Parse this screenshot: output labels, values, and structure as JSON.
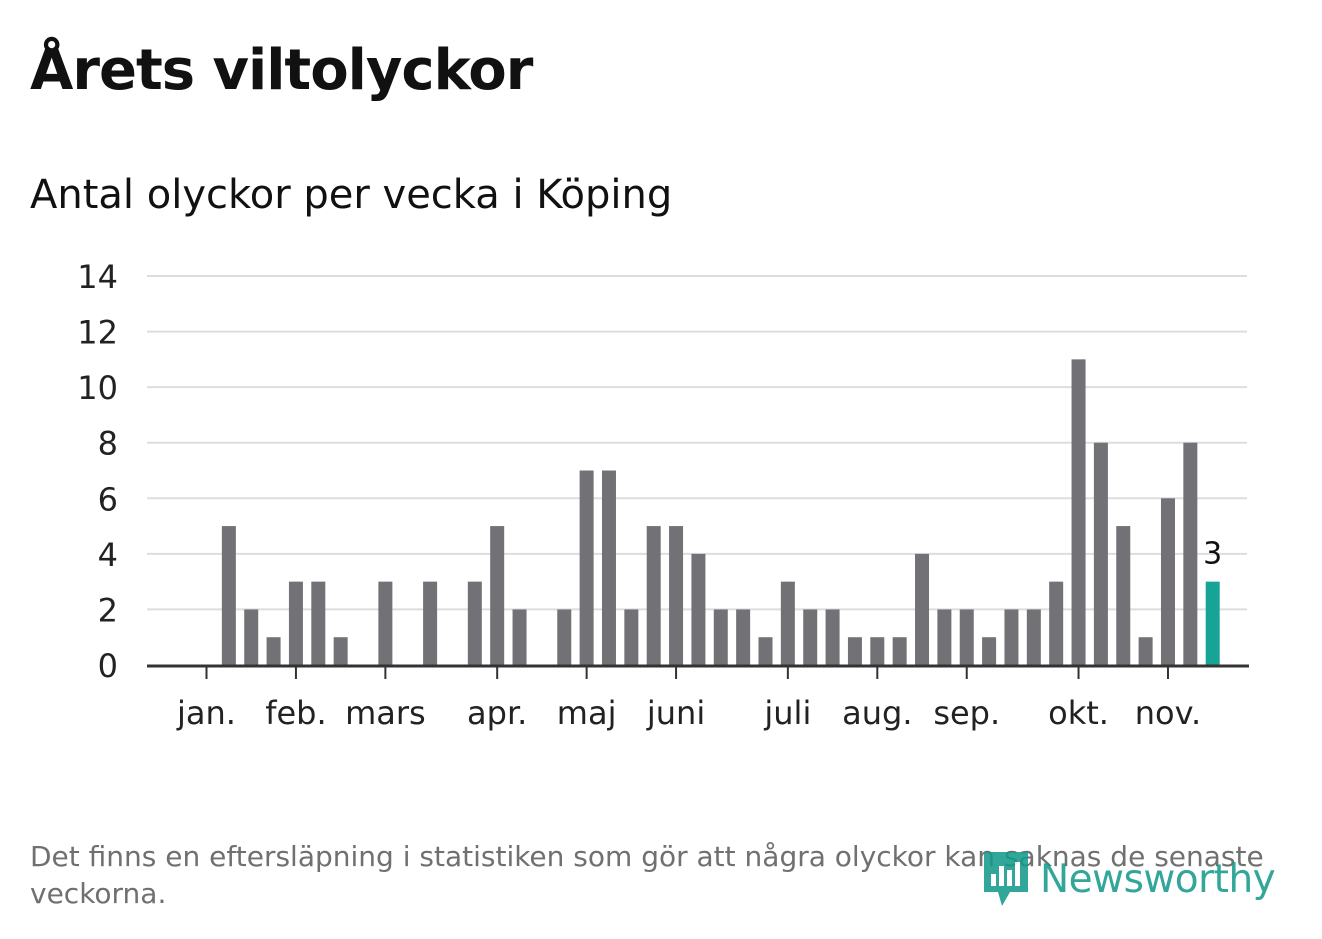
{
  "title": "Årets viltolyckor",
  "subtitle": "Antal olyckor per vecka i Köping",
  "footnote": "Det finns en eftersläpning i statistiken som gör att några olyckor kan saknas de senaste veckorna.",
  "logo": {
    "text": "Newsworthy",
    "icon": "newsworthy-chart-bubble-icon"
  },
  "colors": {
    "bar": "#727176",
    "highlight": "#17a396",
    "grid": "#dddddd",
    "axis": "#333333"
  },
  "chart_data": {
    "type": "bar",
    "title": "Antal olyckor per vecka i Köping",
    "xlabel": "",
    "ylabel": "",
    "ylim": [
      0,
      14
    ],
    "yticks": [
      0,
      2,
      4,
      6,
      8,
      10,
      12,
      14
    ],
    "grid": true,
    "weeks": [
      1,
      2,
      3,
      4,
      5,
      6,
      7,
      8,
      9,
      10,
      11,
      12,
      13,
      14,
      15,
      16,
      17,
      18,
      19,
      20,
      21,
      22,
      23,
      24,
      25,
      26,
      27,
      28,
      29,
      30,
      31,
      32,
      33,
      34,
      35,
      36,
      37,
      38,
      39,
      40,
      41,
      42,
      43,
      44,
      45,
      46,
      47
    ],
    "values": [
      0,
      5,
      2,
      1,
      3,
      3,
      1,
      0,
      3,
      0,
      3,
      0,
      3,
      5,
      2,
      0,
      2,
      7,
      7,
      2,
      5,
      5,
      4,
      2,
      2,
      1,
      3,
      2,
      2,
      1,
      1,
      1,
      4,
      2,
      2,
      1,
      2,
      2,
      3,
      11,
      8,
      5,
      1,
      6,
      8,
      3,
      0
    ],
    "highlight_index": 45,
    "highlight_label": "3",
    "month_ticks": [
      {
        "label": "jan.",
        "week": 1.5
      },
      {
        "label": "feb.",
        "week": 5.5
      },
      {
        "label": "mars",
        "week": 9.5
      },
      {
        "label": "apr.",
        "week": 14.5
      },
      {
        "label": "maj",
        "week": 18.5
      },
      {
        "label": "juni",
        "week": 22.5
      },
      {
        "label": "juli",
        "week": 27.5
      },
      {
        "label": "aug.",
        "week": 31.5
      },
      {
        "label": "sep.",
        "week": 35.5
      },
      {
        "label": "okt.",
        "week": 40.5
      },
      {
        "label": "nov.",
        "week": 44.5
      }
    ]
  }
}
